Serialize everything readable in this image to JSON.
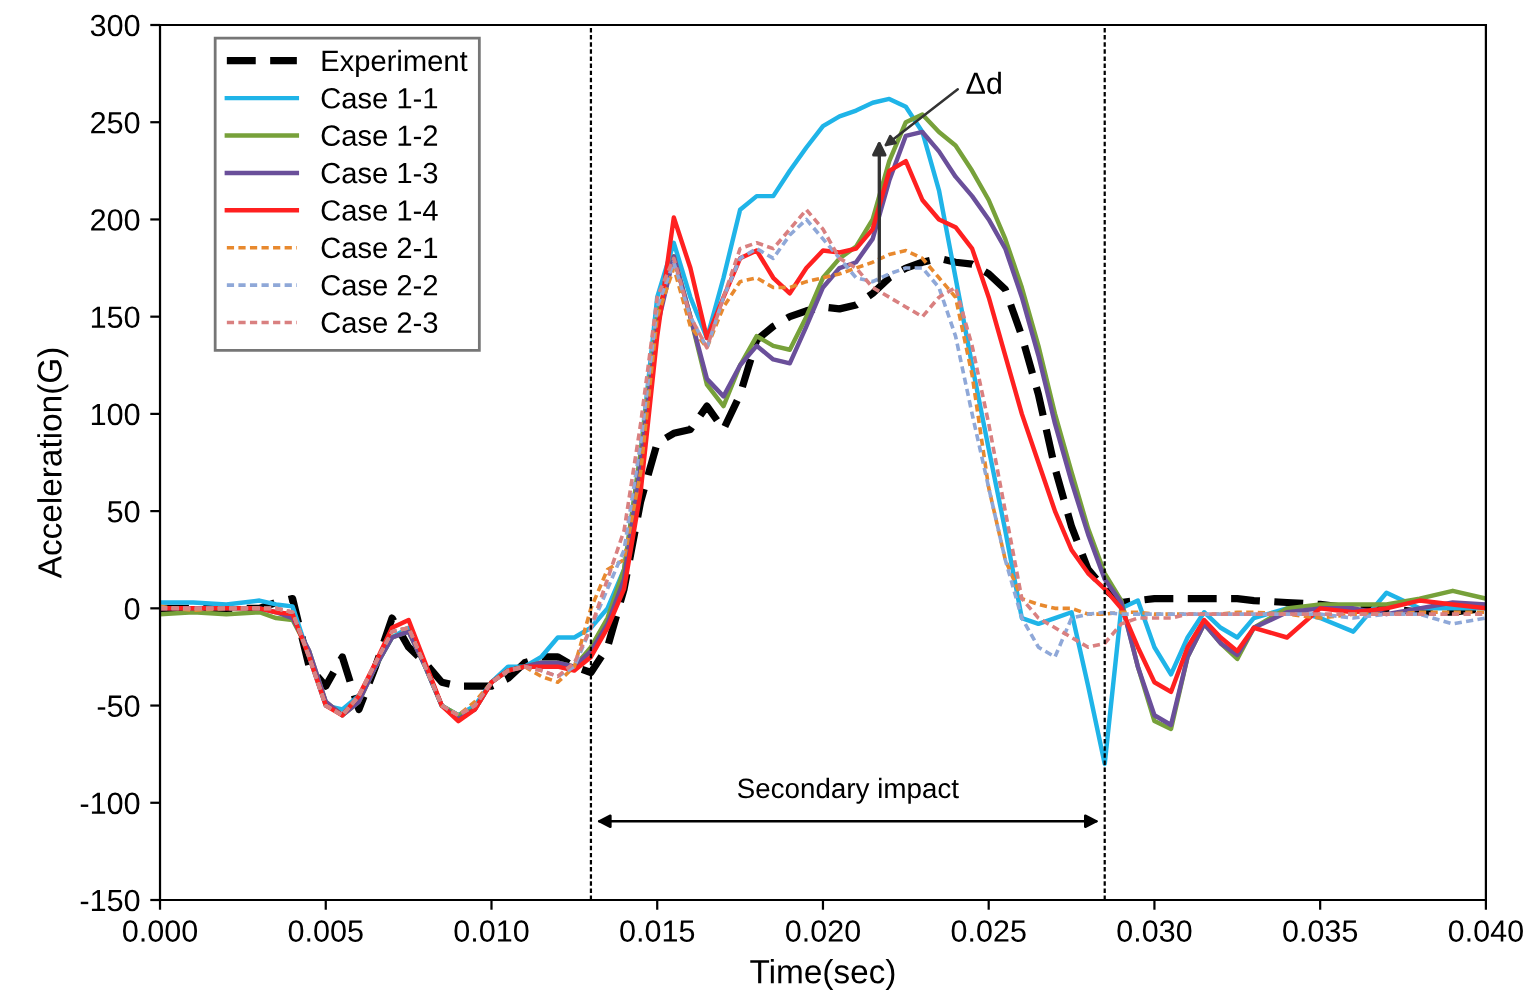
{
  "chart_data": {
    "type": "line",
    "xlabel": "Time(sec)",
    "ylabel": "Acceleration(G)",
    "x": [
      0,
      0.001,
      0.002,
      0.003,
      0.0035,
      0.004,
      0.0045,
      0.005,
      0.0055,
      0.006,
      0.0065,
      0.007,
      0.0075,
      0.008,
      0.0085,
      0.009,
      0.0095,
      0.01,
      0.0105,
      0.011,
      0.0115,
      0.012,
      0.0125,
      0.013,
      0.0135,
      0.014,
      0.0145,
      0.015,
      0.0155,
      0.016,
      0.0165,
      0.017,
      0.0175,
      0.018,
      0.0185,
      0.019,
      0.0195,
      0.02,
      0.0205,
      0.021,
      0.0215,
      0.022,
      0.0225,
      0.023,
      0.0235,
      0.024,
      0.0245,
      0.025,
      0.0255,
      0.026,
      0.0265,
      0.027,
      0.0275,
      0.028,
      0.0285,
      0.029,
      0.0295,
      0.03,
      0.0305,
      0.031,
      0.0315,
      0.032,
      0.0325,
      0.033,
      0.034,
      0.035,
      0.036,
      0.037,
      0.038,
      0.039,
      0.04
    ],
    "series": [
      {
        "name": "Experiment",
        "color": "#000000",
        "line_style": "dashed",
        "values": [
          0,
          0,
          0,
          0,
          3,
          5,
          -30,
          -40,
          -25,
          -52,
          -30,
          -5,
          -20,
          -28,
          -38,
          -40,
          -40,
          -40,
          -36,
          -28,
          -25,
          -25,
          -30,
          -33,
          -20,
          10,
          55,
          85,
          90,
          92,
          104,
          92,
          110,
          138,
          145,
          150,
          153,
          155,
          154,
          156,
          162,
          170,
          175,
          178,
          180,
          178,
          177,
          172,
          164,
          140,
          110,
          72,
          42,
          20,
          10,
          3,
          4,
          5,
          5,
          5,
          5,
          5,
          5,
          4,
          3,
          2,
          0,
          0,
          -2,
          -2,
          0
        ]
      },
      {
        "name": "Case 1-1",
        "color": "#1fb4e8",
        "line_style": "solid",
        "values": [
          3,
          3,
          2,
          4,
          2,
          1,
          -25,
          -50,
          -52,
          -45,
          -30,
          -15,
          -10,
          -30,
          -50,
          -55,
          -50,
          -38,
          -30,
          -30,
          -25,
          -15,
          -15,
          -10,
          0,
          20,
          80,
          160,
          188,
          160,
          139,
          170,
          205,
          212,
          212,
          225,
          237,
          248,
          253,
          256,
          260,
          262,
          258,
          245,
          215,
          170,
          125,
          82,
          40,
          -5,
          -8,
          -5,
          -2,
          -40,
          -80,
          0,
          4,
          -20,
          -34,
          -15,
          -2,
          -10,
          -15,
          -5,
          0,
          -5,
          -12,
          8,
          0,
          0,
          0
        ]
      },
      {
        "name": "Case 1-2",
        "color": "#77a13a",
        "line_style": "solid",
        "values": [
          -3,
          -2,
          -3,
          -2,
          -5,
          -6,
          -22,
          -48,
          -55,
          -48,
          -30,
          -15,
          -12,
          -30,
          -50,
          -55,
          -52,
          -38,
          -32,
          -30,
          -28,
          -28,
          -30,
          -20,
          -5,
          20,
          80,
          150,
          181,
          150,
          115,
          104,
          125,
          140,
          135,
          133,
          150,
          170,
          180,
          186,
          200,
          230,
          250,
          254,
          245,
          238,
          225,
          210,
          190,
          165,
          135,
          100,
          70,
          41,
          18,
          4,
          -30,
          -58,
          -62,
          -25,
          -8,
          -18,
          -26,
          -10,
          0,
          2,
          2,
          2,
          5,
          9,
          5
        ]
      },
      {
        "name": "Case 1-3",
        "color": "#6a4f9a",
        "line_style": "solid",
        "values": [
          0,
          0,
          0,
          0,
          -2,
          -5,
          -22,
          -48,
          -55,
          -48,
          -30,
          -15,
          -12,
          -30,
          -50,
          -57,
          -52,
          -38,
          -32,
          -30,
          -28,
          -28,
          -30,
          -22,
          -8,
          15,
          75,
          145,
          181,
          150,
          118,
          109,
          125,
          135,
          128,
          126,
          145,
          165,
          175,
          178,
          190,
          220,
          243,
          245,
          235,
          222,
          212,
          200,
          185,
          160,
          130,
          95,
          65,
          38,
          15,
          3,
          -30,
          -55,
          -60,
          -25,
          -8,
          -18,
          -24,
          -10,
          -2,
          0,
          0,
          -3,
          0,
          3,
          2
        ]
      },
      {
        "name": "Case 1-4",
        "color": "#ff2020",
        "line_style": "solid",
        "values": [
          0,
          0,
          0,
          0,
          -2,
          -3,
          -25,
          -50,
          -55,
          -45,
          -28,
          -10,
          -6,
          -28,
          -50,
          -58,
          -52,
          -38,
          -32,
          -30,
          -30,
          -30,
          -32,
          -25,
          -10,
          10,
          60,
          140,
          201,
          175,
          139,
          160,
          180,
          184,
          170,
          162,
          175,
          184,
          183,
          185,
          195,
          225,
          230,
          210,
          200,
          196,
          185,
          160,
          130,
          100,
          75,
          50,
          30,
          18,
          10,
          0,
          -20,
          -38,
          -43,
          -20,
          -6,
          -15,
          -22,
          -10,
          -15,
          0,
          -2,
          0,
          4,
          2,
          0
        ]
      },
      {
        "name": "Case 2-1",
        "color": "#e8892e",
        "line_style": "dotted",
        "values": [
          1,
          -1,
          0,
          0,
          0,
          -2,
          -25,
          -50,
          -55,
          -45,
          -28,
          -12,
          -10,
          -30,
          -50,
          -55,
          -48,
          -38,
          -32,
          -30,
          -35,
          -38,
          -30,
          0,
          20,
          25,
          70,
          150,
          175,
          145,
          134,
          155,
          168,
          170,
          165,
          165,
          168,
          170,
          172,
          175,
          178,
          182,
          184,
          180,
          170,
          160,
          120,
          62,
          25,
          5,
          2,
          0,
          0,
          -3,
          -3,
          -2,
          -2,
          -3,
          -3,
          -3,
          -3,
          -3,
          -2,
          -2,
          -3,
          -5,
          -3,
          -3,
          -2,
          -2,
          -2
        ]
      },
      {
        "name": "Case 2-2",
        "color": "#8fa8d8",
        "line_style": "dotted",
        "values": [
          0,
          0,
          0,
          0,
          0,
          -2,
          -25,
          -50,
          -55,
          -45,
          -28,
          -12,
          -10,
          -30,
          -50,
          -55,
          -50,
          -38,
          -32,
          -30,
          -32,
          -35,
          -30,
          -10,
          10,
          30,
          85,
          155,
          178,
          150,
          134,
          160,
          180,
          185,
          180,
          192,
          200,
          190,
          180,
          170,
          168,
          172,
          175,
          175,
          165,
          140,
          100,
          62,
          25,
          -5,
          -20,
          -25,
          -5,
          -3,
          -2,
          -3,
          -3,
          -3,
          -3,
          -3,
          -3,
          -3,
          -3,
          -3,
          -3,
          -3,
          -5,
          -3,
          -3,
          -8,
          -5
        ]
      },
      {
        "name": "Case 2-3",
        "color": "#d98080",
        "line_style": "dotted",
        "values": [
          0,
          0,
          0,
          0,
          0,
          -2,
          -25,
          -50,
          -55,
          -45,
          -28,
          -12,
          -10,
          -30,
          -50,
          -55,
          -50,
          -38,
          -32,
          -30,
          -32,
          -35,
          -28,
          -10,
          15,
          40,
          95,
          160,
          180,
          150,
          134,
          160,
          185,
          188,
          185,
          195,
          205,
          195,
          180,
          175,
          165,
          160,
          155,
          150,
          160,
          165,
          135,
          95,
          50,
          5,
          -5,
          -10,
          -15,
          -20,
          -18,
          -8,
          -5,
          -5,
          -5,
          -3,
          -3,
          -3,
          -3,
          -3,
          -3,
          -3,
          -3,
          -3,
          -3,
          -3,
          -3
        ]
      }
    ],
    "xlim": [
      0,
      0.04
    ],
    "xticks": [
      {
        "value": 0,
        "label": "0.000"
      },
      {
        "value": 0.005,
        "label": "0.005"
      },
      {
        "value": 0.01,
        "label": "0.010"
      },
      {
        "value": 0.015,
        "label": "0.015"
      },
      {
        "value": 0.02,
        "label": "0.020"
      },
      {
        "value": 0.025,
        "label": "0.025"
      },
      {
        "value": 0.03,
        "label": "0.030"
      },
      {
        "value": 0.035,
        "label": "0.035"
      },
      {
        "value": 0.04,
        "label": "0.040"
      }
    ],
    "ylim": [
      -150,
      300
    ],
    "yticks": [
      -150,
      -100,
      -50,
      0,
      50,
      100,
      150,
      200,
      250,
      300
    ],
    "ref_lines": [
      {
        "axis": "x",
        "value": 0.013,
        "line_style": "dotted",
        "color": "#000000"
      },
      {
        "axis": "x",
        "value": 0.0285,
        "line_style": "dotted",
        "color": "#000000"
      }
    ],
    "annotations": [
      "Secondary impact",
      "Δd"
    ],
    "legend": "top left",
    "grid": false,
    "marker": "none"
  }
}
